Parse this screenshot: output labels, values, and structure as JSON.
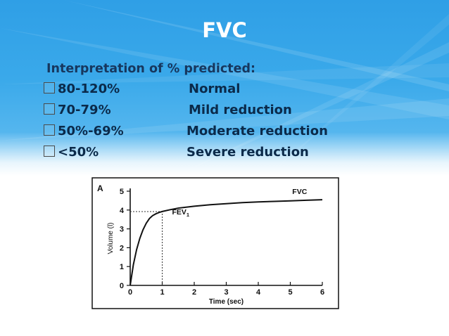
{
  "slide": {
    "title": "FVC",
    "subtitle": "Interpretation of % predicted:",
    "rows": [
      {
        "range": "80-120%",
        "label": "Normal"
      },
      {
        "range": "70-79%",
        "label": "Mild reduction"
      },
      {
        "range": "50%-69%",
        "label": "Moderate reduction"
      },
      {
        "range": "<50%",
        "label": "Severe reduction"
      }
    ],
    "colors": {
      "banner": "#3aa9ea",
      "title": "#ffffff",
      "text": "#0b2a4a"
    }
  },
  "chart_data": {
    "type": "line",
    "panel_label": "A",
    "xlabel": "Time (sec)",
    "ylabel": "Volume (l)",
    "xlim": [
      0,
      6
    ],
    "ylim": [
      0,
      5
    ],
    "x_ticks": [
      0,
      1,
      2,
      3,
      4,
      5,
      6
    ],
    "y_ticks": [
      0,
      1,
      2,
      3,
      4,
      5
    ],
    "series": [
      {
        "name": "FVC",
        "x": [
          0,
          0.1,
          0.2,
          0.3,
          0.4,
          0.5,
          0.6,
          0.7,
          0.8,
          0.9,
          1.0,
          1.25,
          1.5,
          2.0,
          2.5,
          3.0,
          3.5,
          4.0,
          4.5,
          5.0,
          5.5,
          6.0
        ],
        "y": [
          0,
          1.1,
          1.9,
          2.5,
          2.95,
          3.3,
          3.55,
          3.7,
          3.8,
          3.87,
          3.92,
          4.02,
          4.1,
          4.2,
          4.28,
          4.34,
          4.39,
          4.43,
          4.46,
          4.49,
          4.52,
          4.55
        ]
      }
    ],
    "annotations": [
      {
        "text": "FEV",
        "subscript": "1",
        "x": 1,
        "y": 3.92
      },
      {
        "text": "FVC",
        "x": 5.6,
        "y": 4.55
      }
    ],
    "reference_lines": {
      "x": 1,
      "y": 3.92,
      "style": "dotted"
    }
  }
}
